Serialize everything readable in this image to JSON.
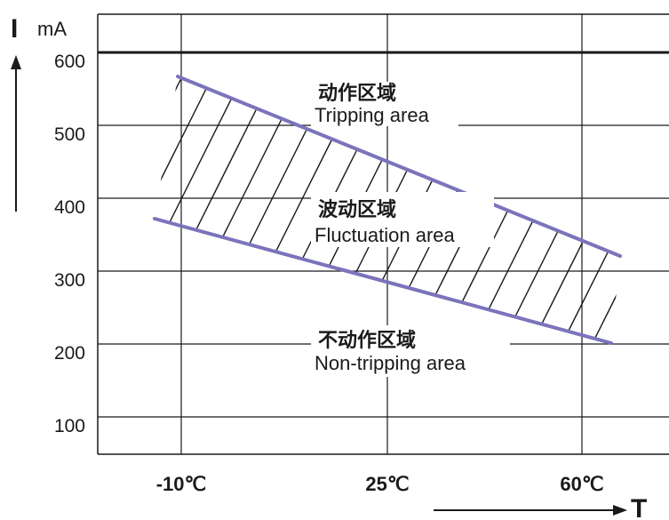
{
  "chart_data": {
    "type": "area",
    "y_axis": {
      "label": "I",
      "unit": "mA",
      "ticks": [
        100,
        200,
        300,
        400,
        500,
        600
      ],
      "range": [
        0,
        600
      ]
    },
    "x_axis": {
      "label": "T",
      "categories": [
        "-10℃",
        "25℃",
        "60℃"
      ]
    },
    "reference_line": {
      "y": 600
    },
    "series": [
      {
        "id": "upper",
        "x": [
          -10,
          60
        ],
        "values": [
          570,
          340
        ]
      },
      {
        "id": "lower",
        "x": [
          -10,
          60
        ],
        "values": [
          370,
          210
        ]
      }
    ],
    "regions": [
      {
        "id": "tripping",
        "zh": "动作区域",
        "en": "Tripping area"
      },
      {
        "id": "fluctuation",
        "zh": "波动区域",
        "en": "Fluctuation area"
      },
      {
        "id": "non_tripping",
        "zh": "不动作区域",
        "en": "Non-tripping area"
      }
    ],
    "colors": {
      "boundary": "#7b74bb",
      "grid": "#1a1a1a",
      "hatch": "#1a1a1a"
    }
  }
}
